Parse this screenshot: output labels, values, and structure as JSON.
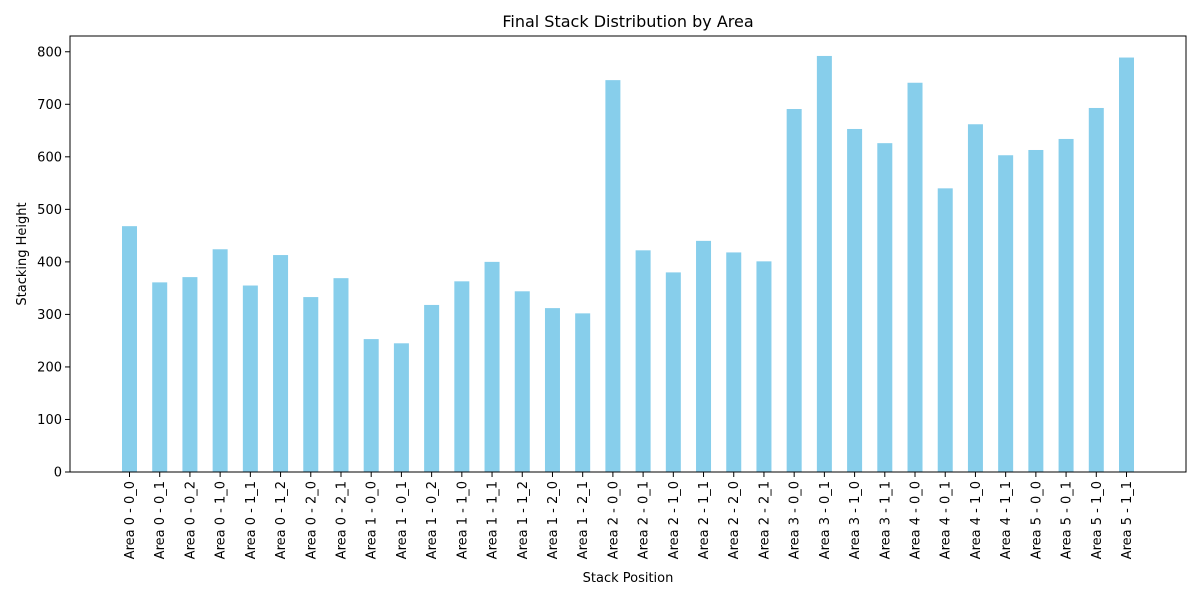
{
  "chart_data": {
    "type": "bar",
    "title": "Final Stack Distribution by Area",
    "xlabel": "Stack Position",
    "ylabel": "Stacking Height",
    "ylim": [
      0,
      830
    ],
    "yticks": [
      0,
      100,
      200,
      300,
      400,
      500,
      600,
      700,
      800
    ],
    "grid": false,
    "bar_color": "#87CEEB",
    "categories": [
      "Area 0 - 0_0",
      "Area 0 - 0_1",
      "Area 0 - 0_2",
      "Area 0 - 1_0",
      "Area 0 - 1_1",
      "Area 0 - 1_2",
      "Area 0 - 2_0",
      "Area 0 - 2_1",
      "Area 1 - 0_0",
      "Area 1 - 0_1",
      "Area 1 - 0_2",
      "Area 1 - 1_0",
      "Area 1 - 1_1",
      "Area 1 - 1_2",
      "Area 1 - 2_0",
      "Area 1 - 2_1",
      "Area 2 - 0_0",
      "Area 2 - 0_1",
      "Area 2 - 1_0",
      "Area 2 - 1_1",
      "Area 2 - 2_0",
      "Area 2 - 2_1",
      "Area 3 - 0_0",
      "Area 3 - 0_1",
      "Area 3 - 1_0",
      "Area 3 - 1_1",
      "Area 4 - 0_0",
      "Area 4 - 0_1",
      "Area 4 - 1_0",
      "Area 4 - 1_1",
      "Area 5 - 0_0",
      "Area 5 - 0_1",
      "Area 5 - 1_0",
      "Area 5 - 1_1"
    ],
    "values": [
      468,
      361,
      371,
      424,
      355,
      413,
      333,
      369,
      253,
      245,
      318,
      363,
      400,
      344,
      312,
      302,
      746,
      422,
      380,
      440,
      418,
      401,
      691,
      792,
      653,
      626,
      741,
      540,
      662,
      603,
      613,
      634,
      693,
      789
    ]
  }
}
